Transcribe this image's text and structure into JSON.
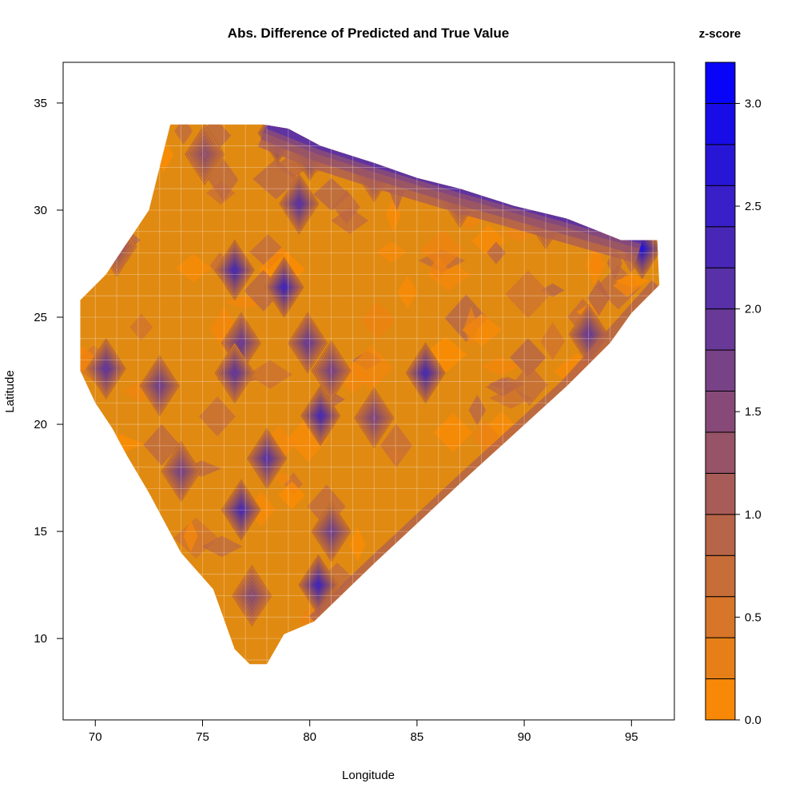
{
  "chart_data": {
    "type": "heatmap",
    "subtype": "filled-contour",
    "title": "Abs. Difference of Predicted and True Value",
    "xlabel": "Longitude",
    "ylabel": "Latitude",
    "xlim": [
      68.5,
      97
    ],
    "ylim": [
      6.2,
      36.9
    ],
    "xticks": [
      70,
      75,
      80,
      85,
      90,
      95
    ],
    "xtick_labels": [
      "70",
      "75",
      "80",
      "85",
      "90",
      "95"
    ],
    "yticks": [
      10,
      15,
      20,
      25,
      30,
      35
    ],
    "ytick_labels": [
      "10",
      "15",
      "20",
      "25",
      "30",
      "35"
    ],
    "grid": true,
    "colorbar": {
      "title": "z-score",
      "range": [
        0,
        3.2
      ],
      "ticks": [
        0,
        0.5,
        1,
        1.5,
        2,
        2.5,
        3
      ],
      "tick_labels": [
        "0.0",
        "0.5",
        "1.0",
        "1.5",
        "2.0",
        "2.5",
        "3.0"
      ],
      "levels": 16,
      "low_color": "#ff8c00",
      "high_color": "#0000ff"
    },
    "domain_outline": [
      [
        73.5,
        34.0
      ],
      [
        77.8,
        34.0
      ],
      [
        79.0,
        33.8
      ],
      [
        80.5,
        33.0
      ],
      [
        83.0,
        32.2
      ],
      [
        85.0,
        31.5
      ],
      [
        87.0,
        31.0
      ],
      [
        89.5,
        30.2
      ],
      [
        92.0,
        29.6
      ],
      [
        94.5,
        28.6
      ],
      [
        96.2,
        28.6
      ],
      [
        96.3,
        26.5
      ],
      [
        95.0,
        25.2
      ],
      [
        94.0,
        23.8
      ],
      [
        92.0,
        21.8
      ],
      [
        87.5,
        17.7
      ],
      [
        83.0,
        13.5
      ],
      [
        80.2,
        10.8
      ],
      [
        78.8,
        10.2
      ],
      [
        78.0,
        8.8
      ],
      [
        77.2,
        8.8
      ],
      [
        76.5,
        9.5
      ],
      [
        75.5,
        12.3
      ],
      [
        74.0,
        14.0
      ],
      [
        72.5,
        16.8
      ],
      [
        71.5,
        18.5
      ],
      [
        70.8,
        19.8
      ],
      [
        70.0,
        21.0
      ],
      [
        69.3,
        22.5
      ],
      [
        69.3,
        25.8
      ],
      [
        70.5,
        27.0
      ],
      [
        71.5,
        28.5
      ],
      [
        72.5,
        30.0
      ],
      [
        73.0,
        32.0
      ]
    ],
    "hotspots": [
      {
        "lon": 78.5,
        "lat": 33.6,
        "value": 2.6
      },
      {
        "lon": 80.0,
        "lat": 32.8,
        "value": 2.2
      },
      {
        "lon": 83.0,
        "lat": 31.8,
        "value": 1.6
      },
      {
        "lon": 87.0,
        "lat": 30.6,
        "value": 1.3
      },
      {
        "lon": 91.0,
        "lat": 29.6,
        "value": 1.1
      },
      {
        "lon": 95.5,
        "lat": 28.2,
        "value": 2.7
      },
      {
        "lon": 93.0,
        "lat": 24.2,
        "value": 1.8
      },
      {
        "lon": 79.5,
        "lat": 30.3,
        "value": 2.0
      },
      {
        "lon": 76.5,
        "lat": 27.2,
        "value": 2.2
      },
      {
        "lon": 78.8,
        "lat": 26.4,
        "value": 2.3
      },
      {
        "lon": 76.8,
        "lat": 23.8,
        "value": 1.8
      },
      {
        "lon": 79.9,
        "lat": 23.8,
        "value": 1.8
      },
      {
        "lon": 76.5,
        "lat": 22.4,
        "value": 1.9
      },
      {
        "lon": 81.0,
        "lat": 22.5,
        "value": 1.6
      },
      {
        "lon": 85.4,
        "lat": 22.4,
        "value": 2.2
      },
      {
        "lon": 70.5,
        "lat": 22.6,
        "value": 1.9
      },
      {
        "lon": 73.0,
        "lat": 21.8,
        "value": 1.7
      },
      {
        "lon": 80.5,
        "lat": 20.4,
        "value": 2.2
      },
      {
        "lon": 83.0,
        "lat": 20.3,
        "value": 1.5
      },
      {
        "lon": 78.0,
        "lat": 18.4,
        "value": 2.0
      },
      {
        "lon": 74.0,
        "lat": 17.8,
        "value": 1.6
      },
      {
        "lon": 76.8,
        "lat": 16.0,
        "value": 2.2
      },
      {
        "lon": 81.0,
        "lat": 15.0,
        "value": 1.7
      },
      {
        "lon": 80.4,
        "lat": 12.5,
        "value": 2.3
      },
      {
        "lon": 77.3,
        "lat": 12.0,
        "value": 1.4
      },
      {
        "lon": 75.1,
        "lat": 32.6,
        "value": 1.3
      },
      {
        "lon": 71.0,
        "lat": 28.3,
        "value": 1.3
      }
    ]
  }
}
